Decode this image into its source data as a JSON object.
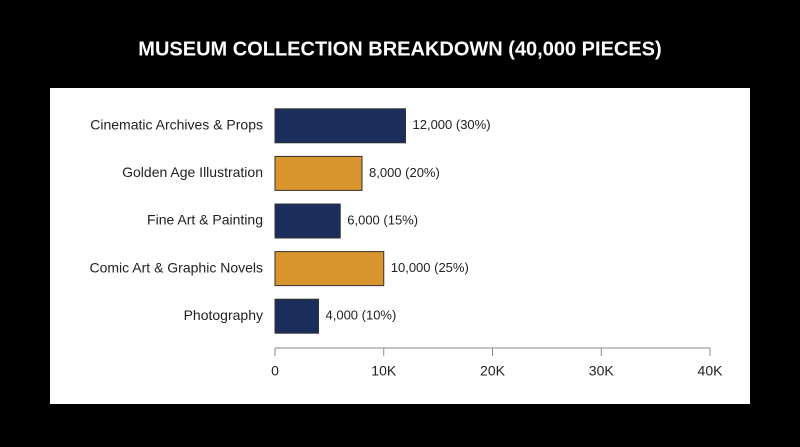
{
  "chart_data": {
    "type": "bar",
    "orientation": "horizontal",
    "title": "MUSEUM COLLECTION BREAKDOWN (40,000 PIECES)",
    "categories": [
      "Cinematic Archives & Props",
      "Golden Age Illustration",
      "Fine Art & Painting",
      "Comic Art & Graphic Novels",
      "Photography"
    ],
    "values": [
      12000,
      8000,
      6000,
      10000,
      4000
    ],
    "value_labels": [
      "12,000 (30%)",
      "8,000 (20%)",
      "6,000 (15%)",
      "10,000 (25%)",
      "4,000 (10%)"
    ],
    "colors": [
      "#1b2d5a",
      "#d9962e",
      "#1b2d5a",
      "#d9962e",
      "#1b2d5a"
    ],
    "xlim": [
      0,
      40000
    ],
    "xticks": [
      0,
      {
        "value": 10000,
        "label": "10K"
      },
      {
        "value": 20000,
        "label": "20K"
      },
      {
        "value": 30000,
        "label": "30K"
      },
      {
        "value": 40000,
        "label": "40K"
      }
    ]
  }
}
